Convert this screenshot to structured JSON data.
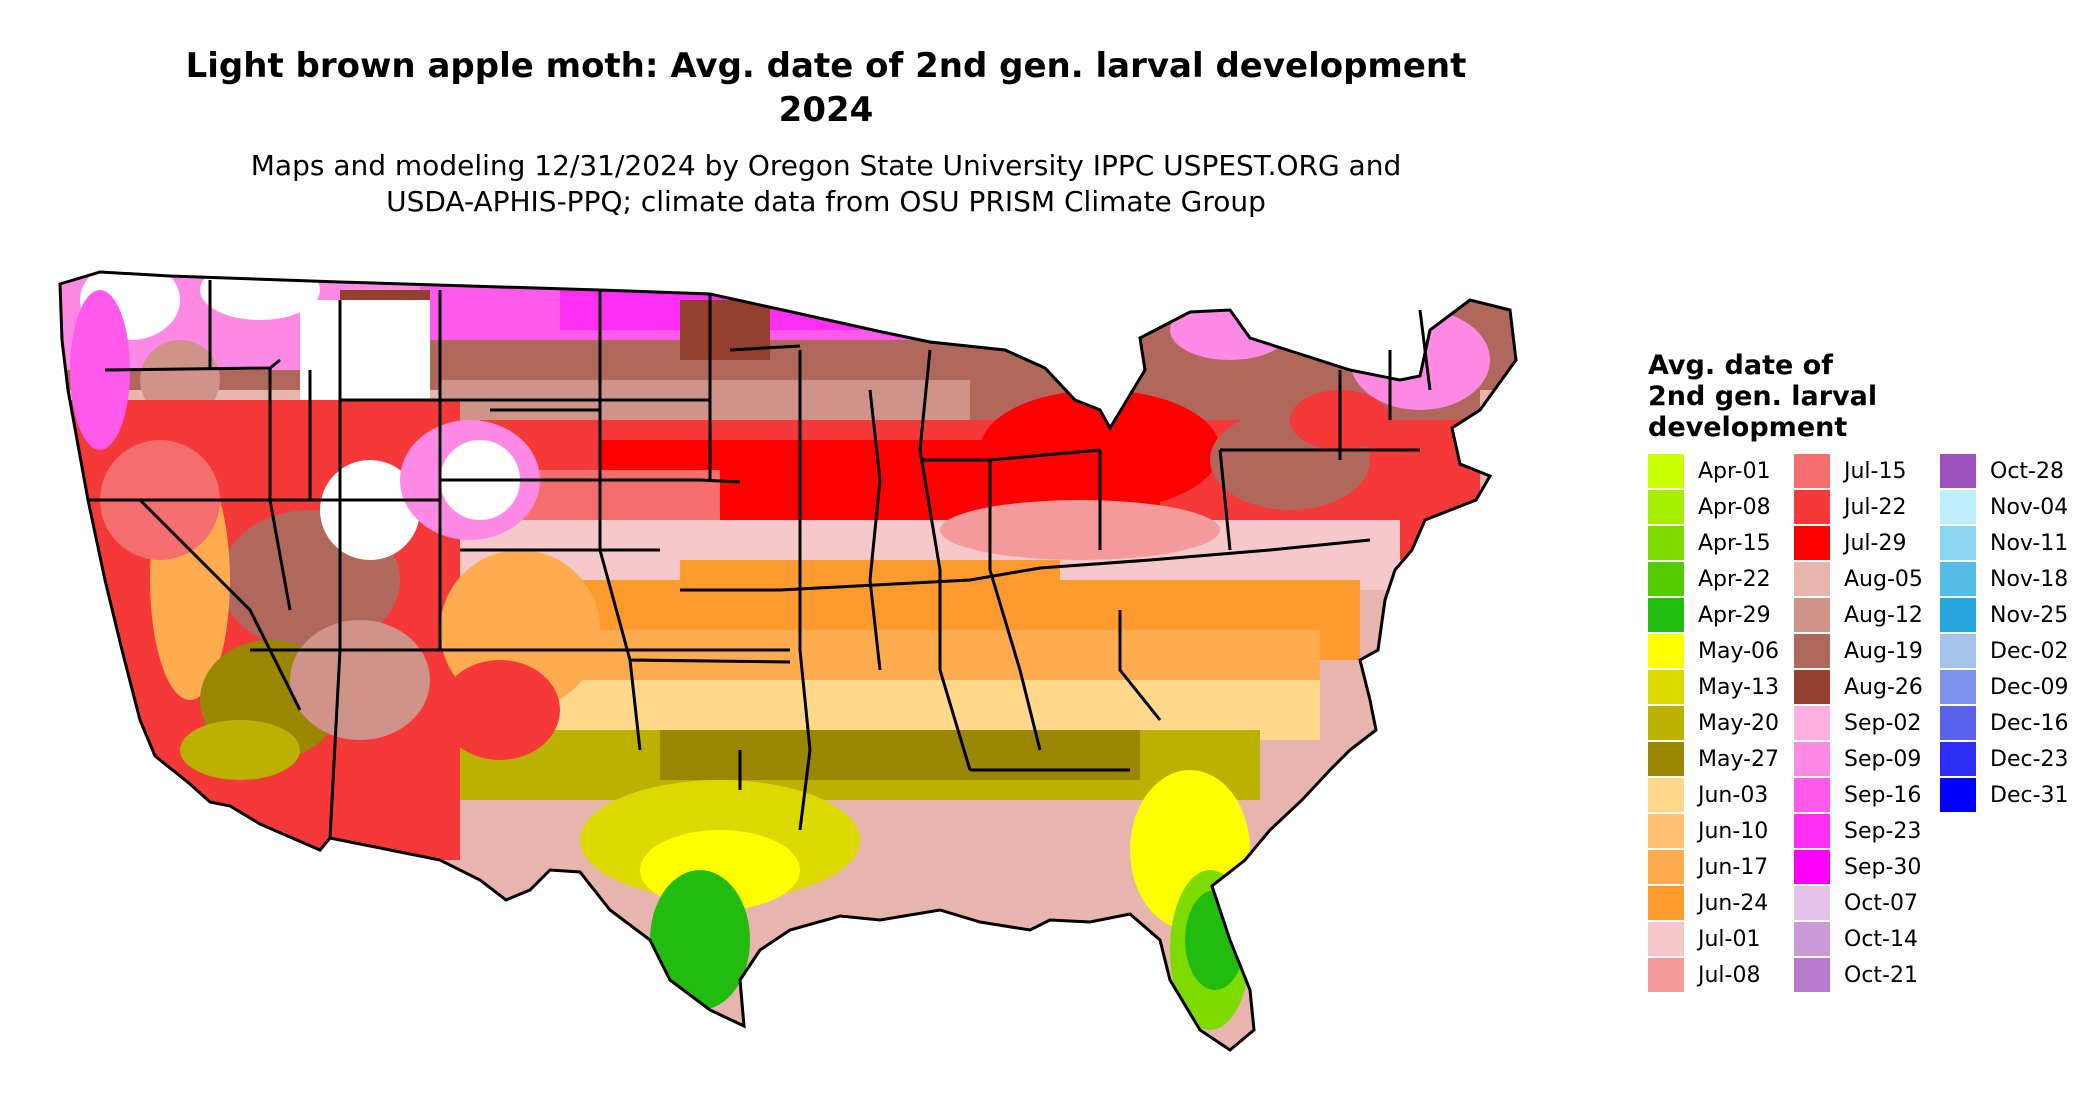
{
  "title": {
    "line1": "Light brown apple moth: Avg. date of 2nd gen. larval development",
    "line2": "2024"
  },
  "subtitle": {
    "line1": "Maps and modeling 12/31/2024 by Oregon State University IPPC USPEST.ORG and",
    "line2": "USDA-APHIS-PPQ; climate data from OSU PRISM Climate Group"
  },
  "legend": {
    "title_lines": [
      "Avg. date of",
      "2nd gen. larval",
      "development"
    ],
    "items": [
      {
        "label": "Apr-01",
        "color": "#CCFF00"
      },
      {
        "label": "Apr-08",
        "color": "#A8EE00"
      },
      {
        "label": "Apr-15",
        "color": "#7EDB00"
      },
      {
        "label": "Apr-22",
        "color": "#52CC00"
      },
      {
        "label": "Apr-29",
        "color": "#22BB10"
      },
      {
        "label": "May-06",
        "color": "#FFFF00"
      },
      {
        "label": "May-13",
        "color": "#DCD900"
      },
      {
        "label": "May-20",
        "color": "#BDB100"
      },
      {
        "label": "May-27",
        "color": "#9A8600"
      },
      {
        "label": "Jun-03",
        "color": "#FFD88C"
      },
      {
        "label": "Jun-10",
        "color": "#FFC270"
      },
      {
        "label": "Jun-17",
        "color": "#FFAC50"
      },
      {
        "label": "Jun-24",
        "color": "#FF9A2E"
      },
      {
        "label": "Jul-01",
        "color": "#F5C8CC"
      },
      {
        "label": "Jul-08",
        "color": "#F59A9A"
      },
      {
        "label": "Jul-15",
        "color": "#F56E6E"
      },
      {
        "label": "Jul-22",
        "color": "#F53838"
      },
      {
        "label": "Jul-29",
        "color": "#FF0000"
      },
      {
        "label": "Aug-05",
        "color": "#E8B4AE"
      },
      {
        "label": "Aug-12",
        "color": "#D0938A"
      },
      {
        "label": "Aug-19",
        "color": "#B0675C"
      },
      {
        "label": "Aug-26",
        "color": "#93402E"
      },
      {
        "label": "Sep-02",
        "color": "#FFB0E0"
      },
      {
        "label": "Sep-09",
        "color": "#FF8AE6"
      },
      {
        "label": "Sep-16",
        "color": "#FF5AEC"
      },
      {
        "label": "Sep-23",
        "color": "#FF2EF2"
      },
      {
        "label": "Sep-30",
        "color": "#FF00FF"
      },
      {
        "label": "Oct-07",
        "color": "#E2C2E8"
      },
      {
        "label": "Oct-14",
        "color": "#CC9AD8"
      },
      {
        "label": "Oct-21",
        "color": "#B87ACB"
      },
      {
        "label": "Oct-28",
        "color": "#9E52BE"
      },
      {
        "label": "Nov-04",
        "color": "#BFEFFF"
      },
      {
        "label": "Nov-11",
        "color": "#8AD6F0"
      },
      {
        "label": "Nov-18",
        "color": "#55BCE8"
      },
      {
        "label": "Nov-25",
        "color": "#2AA6DE"
      },
      {
        "label": "Dec-02",
        "color": "#A6C4EA"
      },
      {
        "label": "Dec-09",
        "color": "#7E94EC"
      },
      {
        "label": "Dec-16",
        "color": "#5A62EE"
      },
      {
        "label": "Dec-23",
        "color": "#2E2EF6"
      },
      {
        "label": "Dec-31",
        "color": "#0000FF"
      }
    ]
  },
  "map": {
    "no_data_color": "#FFFFFF",
    "border_color": "#000000"
  }
}
